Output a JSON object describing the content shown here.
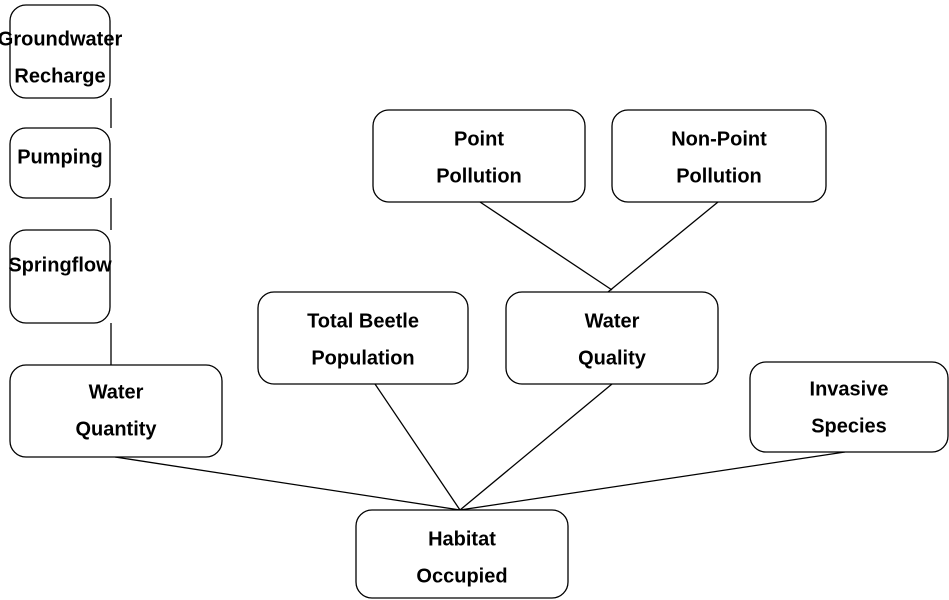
{
  "nodes": [
    {
      "lines": [
        "Groundwater",
        "Recharge"
      ]
    },
    {
      "lines": [
        "Pumping"
      ]
    },
    {
      "lines": [
        "Springflow"
      ]
    },
    {
      "lines": [
        "Water",
        "Quantity"
      ]
    },
    {
      "lines": [
        "Total Beetle",
        "Population"
      ]
    },
    {
      "lines": [
        "Point",
        "Pollution"
      ]
    },
    {
      "lines": [
        "Non-Point",
        "Pollution"
      ]
    },
    {
      "lines": [
        "Water",
        "Quality"
      ]
    },
    {
      "lines": [
        "Invasive",
        "Species"
      ]
    },
    {
      "lines": [
        "Habitat",
        "Occupied"
      ]
    }
  ]
}
